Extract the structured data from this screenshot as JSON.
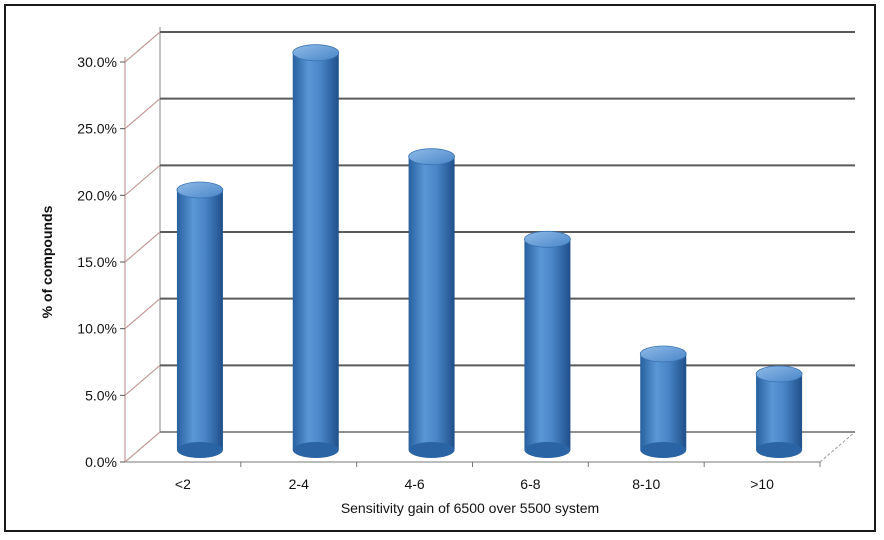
{
  "chart_data": {
    "type": "bar",
    "style": "3d-cylinder",
    "categories": [
      "<2",
      "2-4",
      "4-6",
      "6-8",
      "8-10",
      ">10"
    ],
    "values": [
      19.5,
      29.8,
      22.0,
      15.8,
      7.2,
      5.7
    ],
    "ytick_labels": [
      "0.0%",
      "5.0%",
      "10.0%",
      "15.0%",
      "20.0%",
      "25.0%",
      "30.0%"
    ],
    "ylim": [
      0,
      30
    ],
    "ylabel": "% of compounds",
    "xlabel": "Sensitivity gain of 6500 over 5500 system",
    "title": "",
    "grid": true,
    "legend": "none",
    "colors": {
      "bar": "#4a86c8",
      "bar_dark": "#1f4f8a",
      "bar_light": "#8fbbe8",
      "grid": "#5a5a5a",
      "wall_edge": "#c49a9a"
    }
  }
}
